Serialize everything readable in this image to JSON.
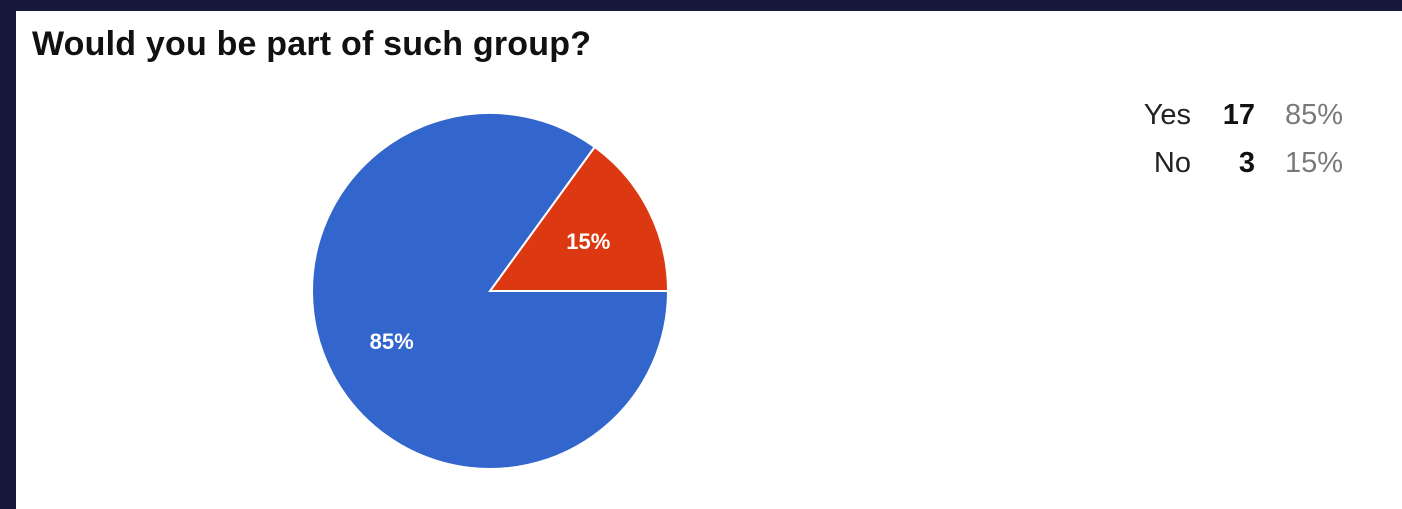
{
  "chart_data": {
    "type": "pie",
    "title": "Would you be part of such group?",
    "slices": [
      {
        "label": "Yes",
        "count": 17,
        "percent": "85%",
        "value": 85,
        "color": "#3366cc"
      },
      {
        "label": "No",
        "count": 3,
        "percent": "15%",
        "value": 15,
        "color": "#dc3912"
      }
    ],
    "legend_position": "right"
  }
}
